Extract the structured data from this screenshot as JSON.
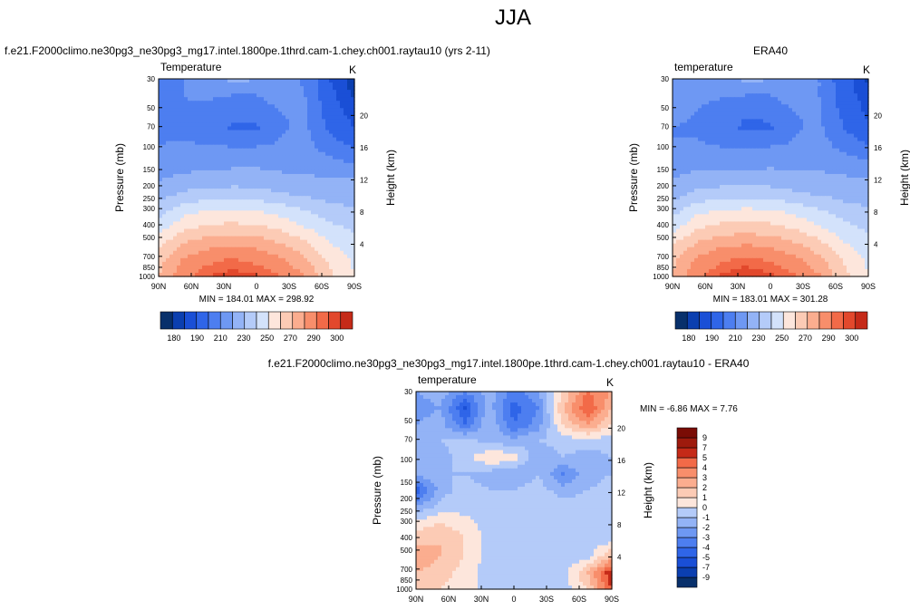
{
  "page_title": "JJA",
  "colors": {
    "blue_scale": [
      "#08306b",
      "#0b3fb0",
      "#1a4fd6",
      "#2f65e8",
      "#4d7ef0",
      "#6e98f3",
      "#93b3f6",
      "#b4cbf9",
      "#d3e2fb"
    ],
    "red_scale": [
      "#fde6dc",
      "#fccbb5",
      "#fbad8f",
      "#f88e6b",
      "#f26a48",
      "#e2482c",
      "#c52a18",
      "#9e1a0d",
      "#7a0c05"
    ]
  },
  "chart_data": [
    {
      "id": "model",
      "type": "heatmap",
      "title": "f.e21.F2000climo.ne30pg3_ne30pg3_mg17.intel.1800pe.1thrd.cam-1.chey.ch001.raytau10 (yrs 2-11)",
      "left_label": "Temperature",
      "right_label": "K",
      "ylabel": "Pressure (mb)",
      "y2label": "Height (km)",
      "x_ticks": [
        "90N",
        "60N",
        "30N",
        "0",
        "30S",
        "60S",
        "90S"
      ],
      "y_ticks": [
        "30",
        "50",
        "70",
        "100",
        "150",
        "200",
        "250",
        "300",
        "400",
        "500",
        "700",
        "850",
        "1000"
      ],
      "y_tick_values": [
        30,
        50,
        70,
        100,
        150,
        200,
        250,
        300,
        400,
        500,
        700,
        850,
        1000
      ],
      "y2_ticks": [
        "20",
        "16",
        "12",
        "8",
        "4"
      ],
      "y2_tick_values": [
        20,
        16,
        12,
        8,
        4
      ],
      "ylim": [
        1000,
        30
      ],
      "xlim": [
        "90N",
        "90S"
      ],
      "stats": "MIN = 184.01   MAX = 298.92",
      "colorbar_labels": [
        "180",
        "190",
        "210",
        "230",
        "250",
        "270",
        "290",
        "300"
      ],
      "colorbar_levels": [
        180,
        185,
        190,
        200,
        210,
        220,
        230,
        240,
        250,
        260,
        270,
        280,
        290,
        295,
        300
      ],
      "grid": [
        [
          205,
          210,
          218,
          222,
          221,
          215,
          208,
          190,
          182
        ],
        [
          206,
          210,
          212,
          210,
          210,
          216,
          210,
          192,
          184
        ],
        [
          207,
          209,
          206,
          202,
          202,
          210,
          211,
          195,
          186
        ],
        [
          208,
          208,
          205,
          199,
          199,
          209,
          212,
          198,
          190
        ],
        [
          210,
          211,
          210,
          209,
          209,
          211,
          213,
          204,
          198
        ],
        [
          213,
          215,
          216,
          217,
          217,
          216,
          216,
          212,
          208
        ],
        [
          219,
          222,
          223,
          224,
          224,
          222,
          221,
          220,
          220
        ],
        [
          225,
          232,
          234,
          235,
          234,
          231,
          228,
          225,
          224
        ],
        [
          235,
          246,
          250,
          251,
          250,
          246,
          240,
          234,
          232
        ],
        [
          245,
          257,
          262,
          263,
          262,
          257,
          250,
          242,
          238
        ],
        [
          258,
          270,
          276,
          278,
          276,
          270,
          262,
          250,
          244
        ],
        [
          266,
          281,
          288,
          291,
          288,
          282,
          272,
          258,
          248
        ],
        [
          270,
          287,
          295,
          298,
          296,
          290,
          280,
          262,
          250
        ]
      ]
    },
    {
      "id": "obs",
      "type": "heatmap",
      "title": "ERA40",
      "left_label": "temperature",
      "right_label": "K",
      "ylabel": "Pressure (mb)",
      "y2label": "Height (km)",
      "x_ticks": [
        "90N",
        "60N",
        "30N",
        "0",
        "30S",
        "60S",
        "90S"
      ],
      "y_ticks": [
        "30",
        "50",
        "70",
        "100",
        "150",
        "200",
        "250",
        "300",
        "400",
        "500",
        "700",
        "850",
        "1000"
      ],
      "y_tick_values": [
        30,
        50,
        70,
        100,
        150,
        200,
        250,
        300,
        400,
        500,
        700,
        850,
        1000
      ],
      "y2_ticks": [
        "20",
        "16",
        "12",
        "8",
        "4"
      ],
      "y2_tick_values": [
        20,
        16,
        12,
        8,
        4
      ],
      "ylim": [
        1000,
        30
      ],
      "xlim": [
        "90N",
        "90S"
      ],
      "stats": "MIN = 183.01   MAX = 301.28",
      "colorbar_labels": [
        "180",
        "190",
        "210",
        "230",
        "250",
        "270",
        "290",
        "300"
      ],
      "colorbar_levels": [
        180,
        185,
        190,
        200,
        210,
        220,
        230,
        240,
        250,
        260,
        270,
        280,
        290,
        295,
        300
      ],
      "grid": [
        [
          220,
          215,
          218,
          222,
          221,
          215,
          210,
          193,
          184
        ],
        [
          215,
          212,
          211,
          210,
          210,
          216,
          210,
          194,
          186
        ],
        [
          212,
          210,
          206,
          201,
          202,
          210,
          211,
          197,
          188
        ],
        [
          210,
          209,
          204,
          198,
          199,
          209,
          212,
          200,
          192
        ],
        [
          210,
          211,
          209,
          208,
          209,
          211,
          214,
          206,
          200
        ],
        [
          214,
          216,
          216,
          216,
          217,
          216,
          217,
          214,
          210
        ],
        [
          220,
          223,
          224,
          224,
          224,
          222,
          222,
          221,
          220
        ],
        [
          226,
          233,
          235,
          236,
          235,
          232,
          229,
          226,
          224
        ],
        [
          236,
          247,
          251,
          252,
          251,
          247,
          241,
          235,
          232
        ],
        [
          246,
          258,
          263,
          264,
          263,
          258,
          251,
          243,
          238
        ],
        [
          259,
          271,
          277,
          279,
          277,
          271,
          263,
          251,
          244
        ],
        [
          267,
          282,
          289,
          292,
          289,
          283,
          273,
          259,
          248
        ],
        [
          271,
          288,
          296,
          300,
          297,
          291,
          281,
          263,
          250
        ]
      ]
    },
    {
      "id": "diff",
      "type": "heatmap",
      "title": "f.e21.F2000climo.ne30pg3_ne30pg3_mg17.intel.1800pe.1thrd.cam-1.chey.ch001.raytau10 - ERA40",
      "left_label": "temperature",
      "right_label": "K",
      "ylabel": "Pressure (mb)",
      "y2label": "Height (km)",
      "x_ticks": [
        "90N",
        "60N",
        "30N",
        "0",
        "30S",
        "60S",
        "90S"
      ],
      "y_ticks": [
        "30",
        "50",
        "70",
        "100",
        "150",
        "200",
        "250",
        "300",
        "400",
        "500",
        "700",
        "850",
        "1000"
      ],
      "y_tick_values": [
        30,
        50,
        70,
        100,
        150,
        200,
        250,
        300,
        400,
        500,
        700,
        850,
        1000
      ],
      "y2_ticks": [
        "20",
        "16",
        "12",
        "8",
        "4"
      ],
      "y2_tick_values": [
        20,
        16,
        12,
        8,
        4
      ],
      "ylim": [
        1000,
        30
      ],
      "xlim": [
        "90N",
        "90S"
      ],
      "stats": "MIN = -6.86  MAX =  7.76",
      "colorbar_labels": [
        "9",
        "7",
        "5",
        "4",
        "3",
        "2",
        "1",
        "0",
        "-1",
        "-2",
        "-3",
        "-4",
        "-5",
        "-7",
        "-9"
      ],
      "colorbar_levels": [
        -9,
        -7,
        -5,
        -4,
        -3,
        -2,
        -1,
        0,
        1,
        2,
        3,
        4,
        5,
        7,
        9
      ],
      "grid": [
        [
          -2,
          -1.5,
          -3,
          -1.5,
          -3.5,
          -2,
          1,
          4,
          3
        ],
        [
          -2.5,
          -2,
          -5,
          -1.5,
          -4.5,
          -3,
          2,
          5,
          2
        ],
        [
          -2,
          -1.5,
          -4,
          -1,
          -4,
          -2.5,
          1,
          3,
          1
        ],
        [
          -1.5,
          -1,
          -0.5,
          -1.5,
          -1.5,
          -1,
          -0.5,
          -0.5,
          -0.5
        ],
        [
          -2,
          -1.5,
          -0.5,
          1,
          0.5,
          -2,
          -1,
          -1.5,
          -1
        ],
        [
          -1.5,
          -1,
          -1,
          -1.5,
          -2,
          -1,
          -3,
          -1.5,
          -1
        ],
        [
          -5,
          -1.5,
          -0.5,
          -1,
          -1,
          -0.5,
          -1.5,
          -1,
          -0.5
        ],
        [
          -2,
          -0.5,
          -0.5,
          -0.5,
          -0.5,
          -0.5,
          -0.5,
          -0.5,
          -0.5
        ],
        [
          0.5,
          1,
          0.5,
          -0.5,
          -0.5,
          -0.5,
          -0.5,
          -0.5,
          -0.5
        ],
        [
          1.5,
          2,
          1,
          -0.5,
          -0.5,
          -0.5,
          -0.5,
          -0.5,
          -0.5
        ],
        [
          3,
          2,
          1,
          -0.5,
          -0.5,
          -0.5,
          -0.5,
          -0.5,
          2
        ],
        [
          2,
          1.5,
          0.5,
          -0.5,
          -0.5,
          -0.5,
          -0.5,
          2,
          6
        ],
        [
          1,
          1,
          0.5,
          -0.5,
          -0.5,
          -0.5,
          -0.5,
          1,
          5
        ]
      ]
    }
  ]
}
